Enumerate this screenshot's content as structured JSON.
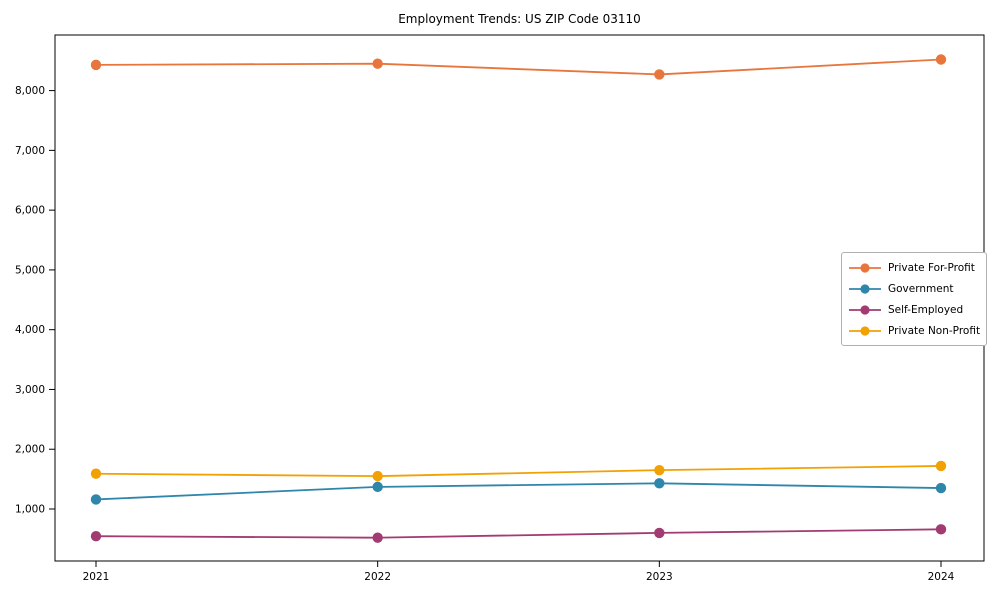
{
  "figure": {
    "title": "Employment Trends: US ZIP Code 03110",
    "background_color": "#ffffff",
    "axes_color": "#000000"
  },
  "chart_data": {
    "type": "line",
    "title": "Employment Trends: US ZIP Code 03110",
    "xlabel": "",
    "ylabel": "",
    "x_labels": [
      "2021",
      "2022",
      "2023",
      "2024"
    ],
    "series": [
      {
        "name": "Private For-Profit",
        "color": "#e8763c",
        "values": [
          8430,
          8450,
          8270,
          8520
        ]
      },
      {
        "name": "Government",
        "color": "#2e86ab",
        "values": [
          1160,
          1370,
          1430,
          1350
        ]
      },
      {
        "name": "Self-Employed",
        "color": "#a23b72",
        "values": [
          545,
          520,
          600,
          660
        ]
      },
      {
        "name": "Private Non-Profit",
        "color": "#f2a104",
        "values": [
          1590,
          1550,
          1650,
          1720
        ]
      }
    ],
    "ylim": [
      130,
      8930
    ],
    "yticks": [
      1000,
      2000,
      3000,
      4000,
      5000,
      6000,
      7000,
      8000
    ],
    "ytick_labels": [
      "1,000",
      "2,000",
      "3,000",
      "4,000",
      "5,000",
      "6,000",
      "7,000",
      "8,000"
    ],
    "grid": false,
    "legend": {
      "position": "center-right",
      "entries": [
        "Private For-Profit",
        "Government",
        "Self-Employed",
        "Private Non-Profit"
      ]
    },
    "marker": "circle",
    "line_width": 1.8,
    "marker_radius": 5.2
  }
}
